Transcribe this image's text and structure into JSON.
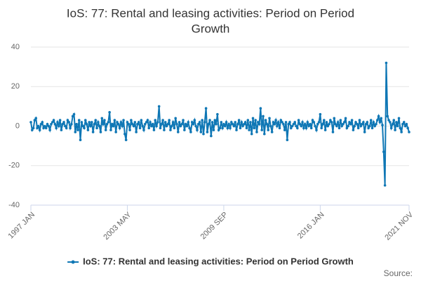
{
  "chart_data": {
    "type": "line",
    "title": [
      "IoS: 77: Rental and leasing activities: Period on Period",
      "Growth"
    ],
    "categories": [
      "1997 JAN",
      null,
      null,
      null,
      null,
      null,
      null,
      null,
      null,
      null,
      null,
      null,
      null,
      null,
      null,
      null,
      null,
      null,
      null,
      null,
      null,
      null,
      null,
      null,
      null,
      null,
      null,
      null,
      null,
      null,
      null,
      null,
      null,
      null,
      null,
      null,
      null,
      null,
      null,
      null,
      null,
      null,
      null,
      null,
      null,
      null,
      null,
      null,
      null,
      null,
      null,
      null,
      null,
      null,
      null,
      null,
      null,
      null,
      null,
      null,
      null,
      null,
      null,
      null,
      null,
      null,
      null,
      null,
      null,
      null,
      null,
      null,
      null,
      null,
      null,
      null,
      "2003 MAY",
      null,
      null,
      null,
      null,
      null,
      null,
      null,
      null,
      null,
      null,
      null,
      null,
      null,
      null,
      null,
      null,
      null,
      null,
      null,
      null,
      null,
      null,
      null,
      null,
      null,
      null,
      null,
      null,
      null,
      null,
      null,
      null,
      null,
      null,
      null,
      null,
      null,
      null,
      null,
      null,
      null,
      null,
      null,
      null,
      null,
      null,
      null,
      null,
      null,
      null,
      null,
      null,
      null,
      null,
      null,
      null,
      null,
      null,
      null,
      null,
      null,
      null,
      null,
      null,
      null,
      null,
      null,
      null,
      null,
      null,
      null,
      null,
      null,
      null,
      null,
      "2009 SEP",
      null,
      null,
      null,
      null,
      null,
      null,
      null,
      null,
      null,
      null,
      null,
      null,
      null,
      null,
      null,
      null,
      null,
      null,
      null,
      null,
      null,
      null,
      null,
      null,
      null,
      null,
      null,
      null,
      null,
      null,
      null,
      null,
      null,
      null,
      null,
      null,
      null,
      null,
      null,
      null,
      null,
      null,
      null,
      null,
      null,
      null,
      null,
      null,
      null,
      null,
      null,
      null,
      null,
      null,
      null,
      null,
      null,
      null,
      null,
      null,
      null,
      null,
      null,
      null,
      null,
      null,
      null,
      null,
      null,
      null,
      null,
      null,
      null,
      null,
      null,
      "2016 JAN",
      null,
      null,
      null,
      null,
      null,
      null,
      null,
      null,
      null,
      null,
      null,
      null,
      null,
      null,
      null,
      null,
      null,
      null,
      null,
      null,
      null,
      null,
      null,
      null,
      null,
      null,
      null,
      null,
      null,
      null,
      null,
      null,
      null,
      null,
      null,
      null,
      null,
      null,
      null,
      null,
      null,
      null,
      null,
      null,
      null,
      null,
      null,
      null,
      null,
      null,
      null,
      null,
      null,
      null,
      null,
      null,
      null,
      null,
      null,
      null,
      null,
      null,
      null,
      null,
      null,
      null,
      null,
      null,
      null,
      "2021 NOV"
    ],
    "series": [
      {
        "name": "IoS: 77: Rental and leasing activities: Period on Period Growth",
        "color": "#0f77b5",
        "values": [
          2,
          -2,
          -1,
          3,
          4,
          -1,
          0,
          -2,
          1,
          2,
          -1,
          0,
          -1,
          1,
          0,
          -2,
          1,
          2,
          3,
          1,
          -1,
          2,
          0,
          3,
          -2,
          1,
          2,
          0,
          -1,
          3,
          2,
          -1,
          1,
          5,
          6,
          -3,
          1,
          -2,
          3,
          -7,
          2,
          0,
          -1,
          3,
          1,
          -2,
          2,
          0,
          2,
          -3,
          1,
          3,
          -1,
          2,
          0,
          -3,
          4,
          1,
          3,
          -2,
          1,
          2,
          7,
          -2,
          1,
          0,
          3,
          -3,
          2,
          1,
          -1,
          2,
          0,
          3,
          -4,
          -7,
          2,
          1,
          -2,
          3,
          1,
          0,
          2,
          -3,
          1,
          2,
          -1,
          3,
          0,
          -2,
          1,
          2,
          3,
          -1,
          2,
          0,
          1,
          -2,
          3,
          0,
          2,
          10,
          -1,
          1,
          3,
          -2,
          2,
          0,
          1,
          3,
          -2,
          0,
          2,
          -1,
          4,
          1,
          -3,
          2,
          0,
          1,
          3,
          -2,
          1,
          0,
          2,
          -1,
          -3,
          2,
          1,
          3,
          0,
          -2,
          1,
          2,
          -3,
          3,
          -4,
          2,
          9,
          -3,
          1,
          3,
          -5,
          2,
          -2,
          3,
          1,
          6,
          -2,
          -1,
          2,
          -1,
          1,
          0,
          2,
          -1,
          1,
          -1,
          2,
          1,
          0,
          2,
          -2,
          1,
          3,
          -1,
          2,
          0,
          1,
          2,
          -1,
          3,
          -2,
          2,
          -4,
          4,
          -1,
          3,
          -3,
          2,
          1,
          9,
          -2,
          5,
          -4,
          3,
          1,
          -2,
          4,
          0,
          -3,
          2,
          1,
          3,
          0,
          2,
          -1,
          3,
          2,
          1,
          -2,
          2,
          -7,
          1,
          2,
          -1,
          0,
          1,
          2,
          0,
          -1,
          3,
          1,
          0,
          2,
          -1,
          1,
          -1,
          2,
          0,
          1,
          -1,
          3,
          2,
          0,
          -2,
          1,
          2,
          6,
          -1,
          1,
          3,
          -2,
          2,
          0,
          1,
          3,
          2,
          -3,
          4,
          1,
          0,
          2,
          -1,
          3,
          0,
          1,
          2,
          4,
          -1,
          0,
          2,
          1,
          3,
          -2,
          0,
          2,
          1,
          -1,
          3,
          0,
          1,
          2,
          -3,
          1,
          2,
          -1,
          0,
          3,
          -1,
          2,
          0,
          1,
          3,
          5,
          2,
          4,
          0.5,
          -13,
          -30,
          32,
          5,
          3,
          2,
          -1,
          1,
          3,
          -2,
          2,
          0,
          4,
          -1,
          -3,
          1,
          2,
          0,
          1,
          -1,
          -3
        ]
      }
    ],
    "ylim": [
      -40,
      40
    ],
    "yticks": [
      -40,
      -20,
      0,
      20,
      40
    ],
    "grid": true,
    "source": "Source:"
  }
}
